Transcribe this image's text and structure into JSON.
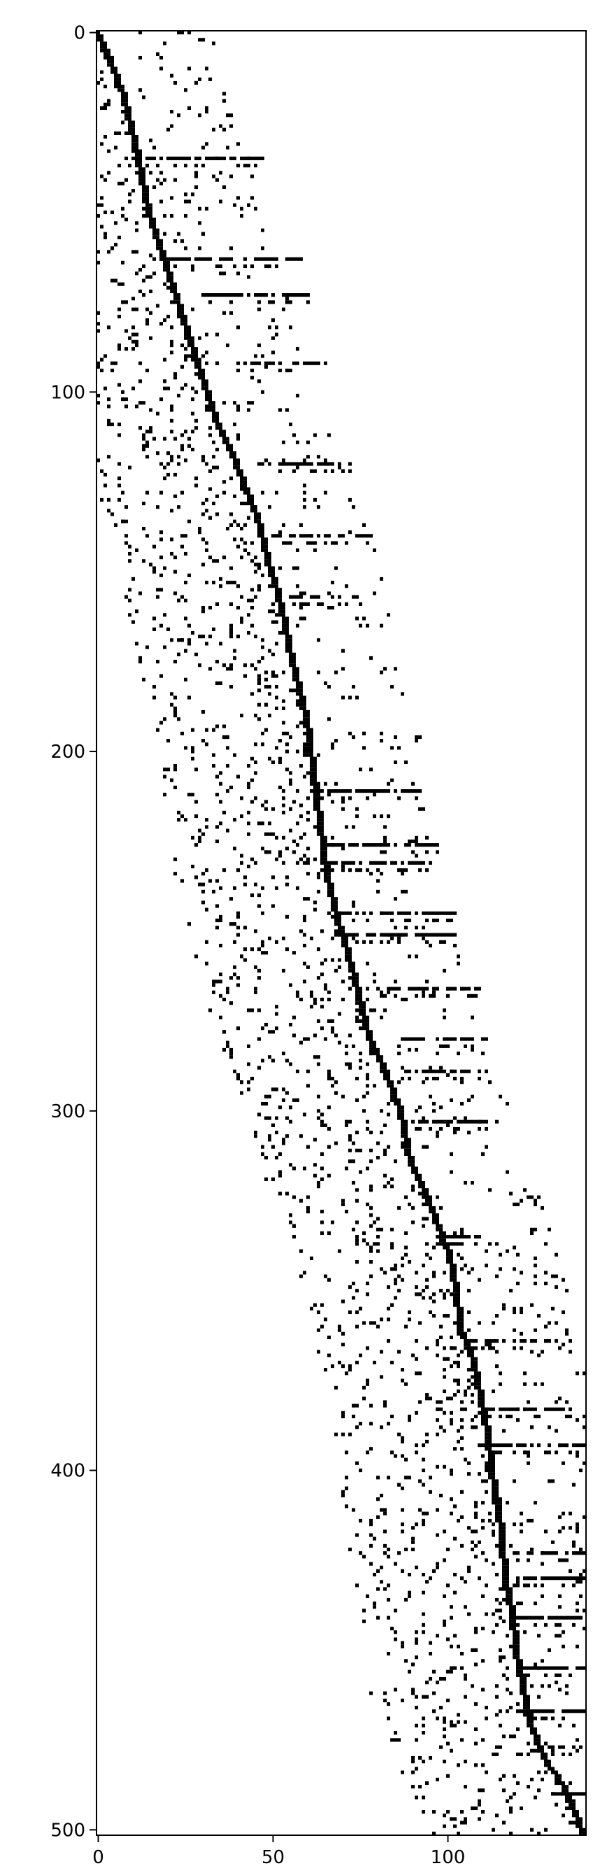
{
  "chart_data": {
    "type": "heatmap",
    "description_style": "sparsity pattern (spy plot)",
    "title": "",
    "xlabel": "",
    "ylabel": "",
    "xlim": [
      -0.5,
      139.5
    ],
    "ylim": [
      501.5,
      -0.5
    ],
    "n_rows": 502,
    "n_cols": 140,
    "x_ticks": [
      0,
      50,
      100
    ],
    "x_tick_labels": [
      "0",
      "50",
      "100"
    ],
    "y_ticks": [
      0,
      100,
      200,
      300,
      400,
      500
    ],
    "y_tick_labels": [
      "0",
      "100",
      "200",
      "300",
      "400",
      "500"
    ],
    "grid": false,
    "colors": {
      "filled": "#000000",
      "empty": "#ffffff"
    },
    "diagonal_band": {
      "points": [
        [
          0,
          0
        ],
        [
          8,
          4
        ],
        [
          18,
          8
        ],
        [
          35,
          12
        ],
        [
          50,
          15
        ],
        [
          65,
          20
        ],
        [
          80,
          25
        ],
        [
          95,
          30
        ],
        [
          110,
          35
        ],
        [
          120,
          40
        ],
        [
          135,
          46
        ],
        [
          150,
          50
        ],
        [
          160,
          53
        ],
        [
          175,
          56
        ],
        [
          190,
          60
        ],
        [
          205,
          62
        ],
        [
          220,
          64
        ],
        [
          235,
          66
        ],
        [
          250,
          70
        ],
        [
          260,
          73
        ],
        [
          280,
          78
        ],
        [
          290,
          83
        ],
        [
          300,
          87
        ],
        [
          315,
          90
        ],
        [
          325,
          95
        ],
        [
          340,
          101
        ],
        [
          350,
          103
        ],
        [
          360,
          104
        ],
        [
          370,
          108
        ],
        [
          380,
          110
        ],
        [
          390,
          112
        ],
        [
          400,
          113
        ],
        [
          410,
          115
        ],
        [
          420,
          116
        ],
        [
          430,
          117
        ],
        [
          440,
          119
        ],
        [
          450,
          120
        ],
        [
          460,
          122
        ],
        [
          470,
          124
        ],
        [
          480,
          128
        ],
        [
          490,
          135
        ],
        [
          501,
          139
        ]
      ],
      "description": "dense staircase of nonzeros along the main structure; row index vs column index"
    },
    "dense_row_segments": [
      {
        "row": 35,
        "from": 10,
        "to": 48
      },
      {
        "row": 63,
        "from": 19,
        "to": 58
      },
      {
        "row": 73,
        "from": 30,
        "to": 60
      },
      {
        "row": 92,
        "from": 40,
        "to": 65
      },
      {
        "row": 120,
        "from": 46,
        "to": 72
      },
      {
        "row": 140,
        "from": 50,
        "to": 78
      },
      {
        "row": 157,
        "from": 52,
        "to": 74
      },
      {
        "row": 211,
        "from": 62,
        "to": 92
      },
      {
        "row": 226,
        "from": 64,
        "to": 98
      },
      {
        "row": 231,
        "from": 66,
        "to": 96
      },
      {
        "row": 245,
        "from": 69,
        "to": 102
      },
      {
        "row": 251,
        "from": 68,
        "to": 103
      },
      {
        "row": 266,
        "from": 80,
        "to": 109
      },
      {
        "row": 280,
        "from": 85,
        "to": 111
      },
      {
        "row": 289,
        "from": 88,
        "to": 111
      },
      {
        "row": 303,
        "from": 90,
        "to": 111
      },
      {
        "row": 335,
        "from": 96,
        "to": 109
      },
      {
        "row": 364,
        "from": 106,
        "to": 131
      },
      {
        "row": 383,
        "from": 110,
        "to": 135
      },
      {
        "row": 393,
        "from": 112,
        "to": 139
      },
      {
        "row": 423,
        "from": 118,
        "to": 139
      },
      {
        "row": 430,
        "from": 118,
        "to": 139
      },
      {
        "row": 441,
        "from": 120,
        "to": 139
      },
      {
        "row": 455,
        "from": 121,
        "to": 139
      },
      {
        "row": 467,
        "from": 124,
        "to": 139
      },
      {
        "row": 477,
        "from": 126,
        "to": 139
      },
      {
        "row": 490,
        "from": 130,
        "to": 139
      }
    ],
    "scatter_density": "moderately sparse nonzeros scattered left of the diagonal band, mostly within ~40 columns of it"
  }
}
